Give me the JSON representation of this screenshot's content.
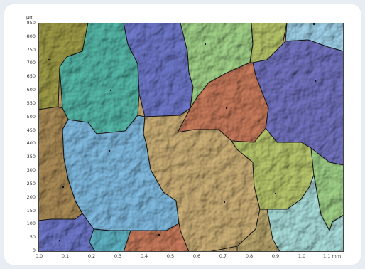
{
  "map": {
    "y_unit": "µm",
    "x_unit": "mm",
    "y_ticks": [
      "850",
      "800",
      "750",
      "700",
      "650",
      "600",
      "550",
      "500",
      "450",
      "400",
      "350",
      "300",
      "250",
      "200",
      "150",
      "100",
      "50",
      "0"
    ],
    "x_ticks": [
      "0.0",
      "0.1",
      "0.2",
      "0.3",
      "0.4",
      "0.5",
      "0.6",
      "0.7",
      "0.8",
      "0.9",
      "1.0",
      "1.1 mm"
    ]
  },
  "colors": {
    "blue": "#6d77c8",
    "teal": "#54b6a6",
    "green": "#9fcf86",
    "olive": "#9d9a47",
    "brown": "#a98a56",
    "tan": "#c9ad75",
    "rust": "#c77a5b",
    "sky": "#7fb9de",
    "light_blue": "#9fd1e8",
    "purple": "#7172bf",
    "lime": "#b6c56b"
  }
}
